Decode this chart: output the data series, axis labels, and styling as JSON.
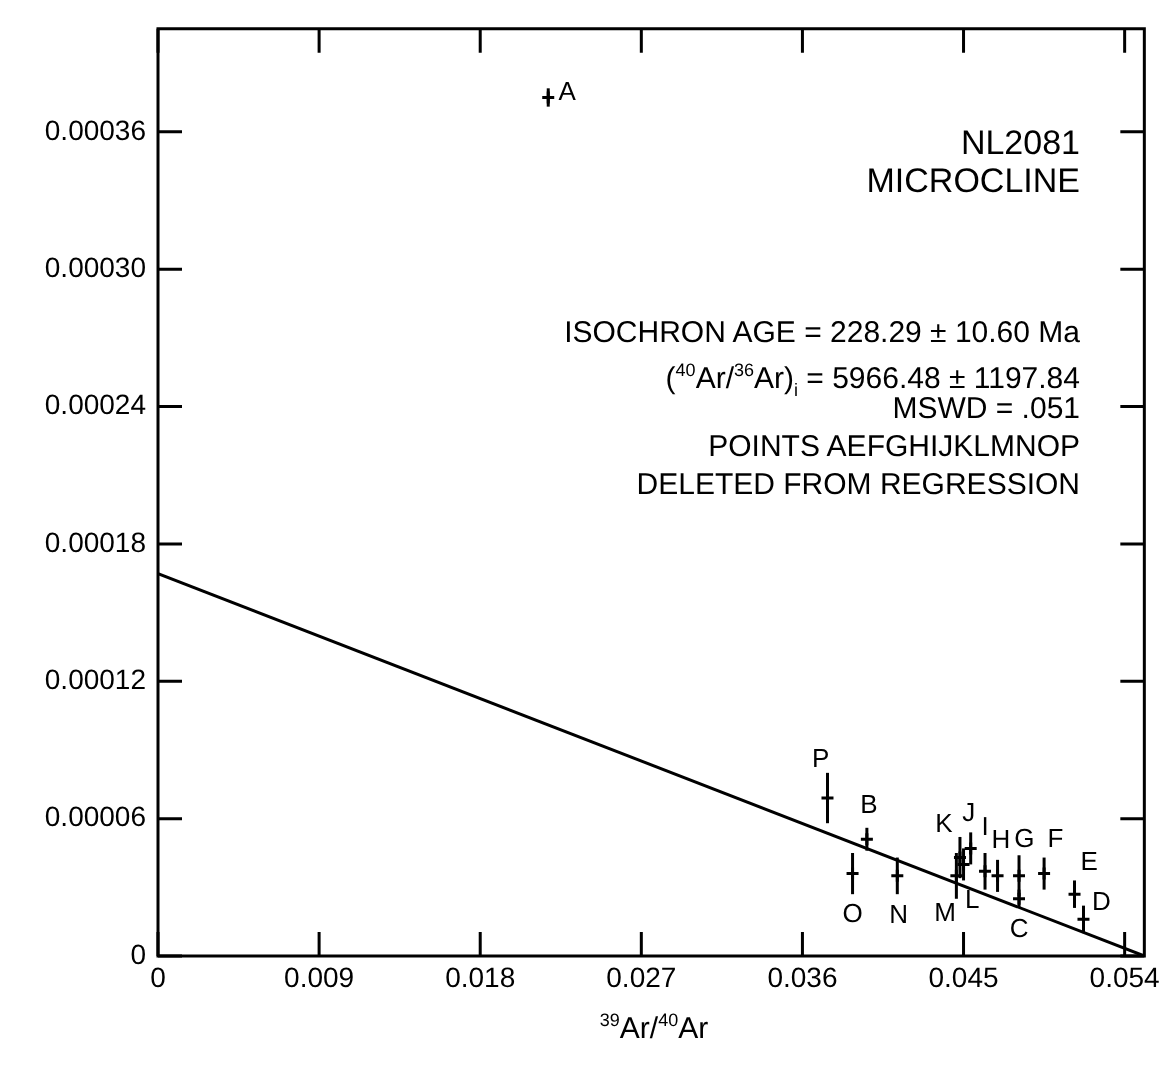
{
  "chart_data": {
    "type": "scatter",
    "xlabel": "$^{39}$Ar/$^{40}$Ar",
    "xlim": [
      0,
      0.0551
    ],
    "xticks": [
      0,
      0.009,
      0.018,
      0.027,
      0.036,
      0.045,
      0.054
    ],
    "ylim": [
      0,
      0.000405
    ],
    "yticks": [
      0,
      {
        "value": 6e-05,
        "label": "0.00006"
      },
      {
        "value": 0.00012,
        "label": "0.00012"
      },
      {
        "value": 0.00018,
        "label": "0.00018"
      },
      {
        "value": 0.00024,
        "label": "0.00024"
      },
      {
        "value": 0.0003,
        "label": "0.00030"
      },
      {
        "value": 0.00036,
        "label": "0.00036"
      }
    ],
    "grid": false,
    "legend": false,
    "series": [
      {
        "color": "#000000",
        "marker": "cross",
        "x": [
          0.0218,
          0.0396,
          0.0481,
          0.0517,
          0.0512,
          0.0495,
          0.0481,
          0.0469,
          0.0462,
          0.0454,
          0.0448,
          0.045,
          0.0446,
          0.0413,
          0.0388,
          0.0374
        ],
        "values": [
          0.000375,
          5.1e-05,
          2.5e-05,
          1.6e-05,
          2.7e-05,
          3.6e-05,
          3.5e-05,
          3.5e-05,
          3.7e-05,
          4.7e-05,
          4.3e-05,
          4e-05,
          3.5e-05,
          3.5e-05,
          3.6e-05,
          6.9e-05
        ],
        "errors": [
          4e-06,
          5e-06,
          4e-06,
          6e-06,
          6e-06,
          7e-06,
          9e-06,
          7e-06,
          8e-06,
          7e-06,
          9e-06,
          7e-06,
          1e-05,
          8e-06,
          9e-06,
          1.1e-05
        ]
      },
      {
        "type": "line",
        "color": "#000000",
        "marker": "none",
        "x": [
          0,
          0.0551
        ],
        "values": [
          0.000167,
          0
        ],
        "line_style": "solid"
      }
    ],
    "annotations": [
      "NL2081",
      "MICROCLINE",
      "ISOCHRON AGE = 228.29 ± 10.60 Ma",
      "($^{40}$Ar/$^{36}$Ar)$_{i}$ = 5966.48 ± 1197.84",
      "MSWD = .051",
      "POINTS AEFGHIJKLMNOP",
      "DELETED FROM REGRESSION",
      {
        "text": "A",
        "x": 0.0218,
        "y": 0.000375
      },
      {
        "text": "B",
        "x": 0.0396,
        "y": 5.1e-05
      },
      {
        "text": "C",
        "x": 0.0481,
        "y": 2.5e-05
      },
      {
        "text": "D",
        "x": 0.0517,
        "y": 1.6e-05
      },
      {
        "text": "E",
        "x": 0.0512,
        "y": 2.7e-05
      },
      {
        "text": "F",
        "x": 0.0495,
        "y": 3.6e-05
      },
      {
        "text": "G",
        "x": 0.0481,
        "y": 3.5e-05
      },
      {
        "text": "H",
        "x": 0.0469,
        "y": 3.5e-05
      },
      {
        "text": "I",
        "x": 0.0462,
        "y": 3.7e-05
      },
      {
        "text": "J",
        "x": 0.0454,
        "y": 4.7e-05
      },
      {
        "text": "K",
        "x": 0.0448,
        "y": 4.3e-05
      },
      {
        "text": "L",
        "x": 0.045,
        "y": 4e-05
      },
      {
        "text": "M",
        "x": 0.0446,
        "y": 3.5e-05
      },
      {
        "text": "N",
        "x": 0.0413,
        "y": 3.5e-05
      },
      {
        "text": "O",
        "x": 0.0388,
        "y": 3.6e-05
      },
      {
        "text": "P",
        "x": 0.0374,
        "y": 6.9e-05
      }
    ]
  }
}
